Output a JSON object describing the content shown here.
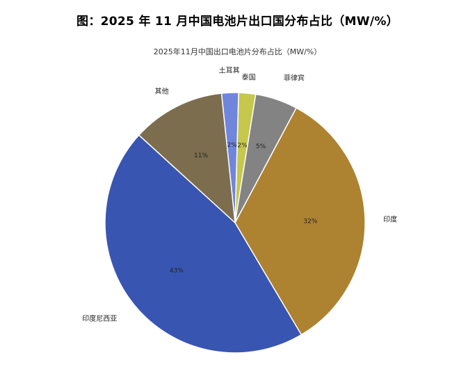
{
  "figure_title": "图：2025 年 11 月中国电池片出口国分布占比（MW/%）",
  "chart_data": {
    "type": "pie",
    "title": "2025年11月中国出口电池片分布占比（MW/%）",
    "slices": [
      {
        "label": "土耳其",
        "value": 2,
        "value_label": "2%",
        "color": "#6f86dc"
      },
      {
        "label": "泰国",
        "value": 2,
        "value_label": "2%",
        "color": "#c6c74d"
      },
      {
        "label": "菲律宾",
        "value": 5,
        "value_label": "5%",
        "color": "#838383"
      },
      {
        "label": "印度",
        "value": 32,
        "value_label": "32%",
        "color": "#ad8230"
      },
      {
        "label": "印度尼西亚",
        "value": 43,
        "value_label": "43%",
        "color": "#3955b2"
      },
      {
        "label": "其他",
        "value": 11,
        "value_label": "11%",
        "color": "#7c6d4f"
      }
    ],
    "start_angle_deg": -96,
    "direction": "clockwise",
    "legend": "none"
  }
}
